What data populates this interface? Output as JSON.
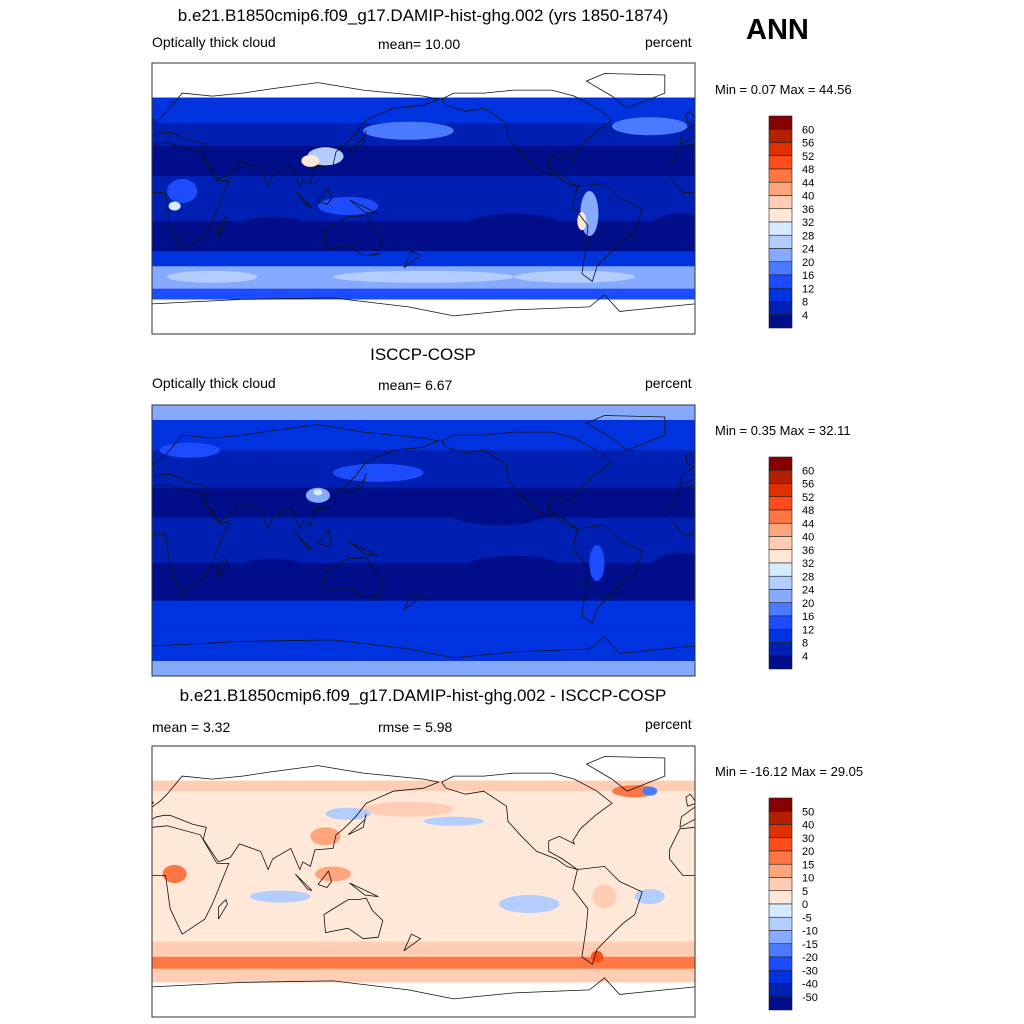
{
  "season": "ANN",
  "panels": [
    {
      "title": "b.e21.B1850cmip6.f09_g17.DAMIP-hist-ghg.002 (yrs 1850-1874)",
      "left": "Optically thick cloud",
      "center": "mean=  10.00",
      "right": "percent",
      "minmax": "Min =   0.07 Max =  44.56",
      "levels": [
        "60",
        "56",
        "52",
        "48",
        "44",
        "40",
        "36",
        "32",
        "28",
        "24",
        "20",
        "16",
        "12",
        "8",
        "4"
      ],
      "field": "model"
    },
    {
      "title": "ISCCP-COSP",
      "left": "Optically thick cloud",
      "center": "mean=   6.67",
      "right": "percent",
      "minmax": "Min =   0.35 Max =  32.11",
      "levels": [
        "60",
        "56",
        "52",
        "48",
        "44",
        "40",
        "36",
        "32",
        "28",
        "24",
        "20",
        "16",
        "12",
        "8",
        "4"
      ],
      "field": "obs"
    },
    {
      "title": "b.e21.B1850cmip6.f09_g17.DAMIP-hist-ghg.002 - ISCCP-COSP",
      "left": "mean =   3.32",
      "center": "rmse =   5.98",
      "right": "percent",
      "minmax": "Min = -16.12 Max =  29.05",
      "levels": [
        "50",
        "40",
        "30",
        "20",
        "15",
        "10",
        "5",
        "0",
        "-5",
        "-10",
        "-15",
        "-20",
        "-30",
        "-40",
        "-50"
      ],
      "field": "diff"
    }
  ],
  "chart_data": {
    "type": "heatmap",
    "colormap": [
      "#870000",
      "#b22000",
      "#e03000",
      "#ff4c1a",
      "#ff7544",
      "#ffa57e",
      "#ffccb4",
      "#ffe8d7",
      "#d7ebff",
      "#b4cdff",
      "#86aaff",
      "#4a7bff",
      "#1d4cff",
      "#0033e0",
      "#0020b4",
      "#000e8a"
    ],
    "x_range_lon": [
      0,
      360
    ],
    "y_range_lat": [
      -90,
      90
    ]
  }
}
